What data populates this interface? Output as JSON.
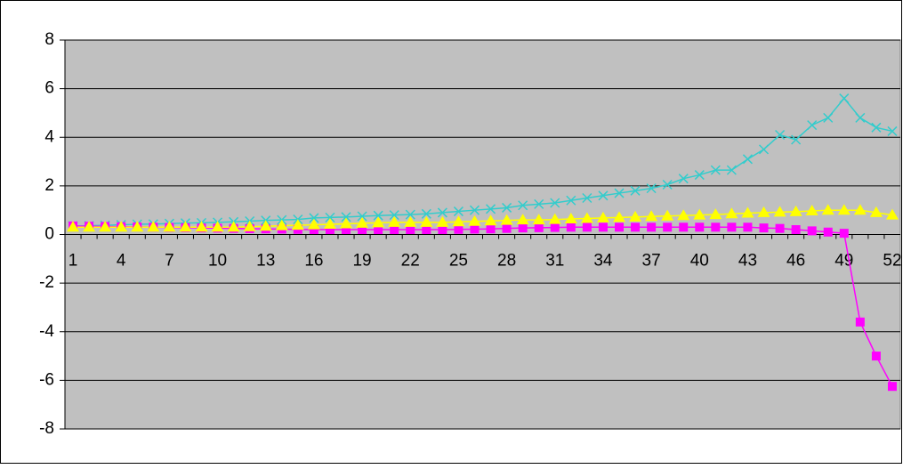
{
  "chart_data": {
    "type": "line",
    "categories": [
      1,
      null,
      null,
      4,
      null,
      null,
      7,
      null,
      null,
      10,
      null,
      null,
      13,
      null,
      null,
      16,
      null,
      null,
      19,
      null,
      null,
      22,
      null,
      null,
      25,
      null,
      null,
      28,
      null,
      null,
      31,
      null,
      null,
      34,
      null,
      null,
      37,
      null,
      null,
      40,
      null,
      null,
      43,
      null,
      null,
      46,
      null,
      null,
      49,
      null,
      null,
      52
    ],
    "series": [
      {
        "color": "#33cccc",
        "marker": "x",
        "values": [
          0.35,
          0.36,
          0.38,
          0.4,
          0.42,
          0.43,
          0.45,
          0.47,
          0.48,
          0.5,
          0.52,
          0.55,
          0.58,
          0.6,
          0.62,
          0.68,
          0.7,
          0.72,
          0.75,
          0.78,
          0.8,
          0.82,
          0.85,
          0.9,
          0.95,
          1.0,
          1.05,
          1.1,
          1.2,
          1.25,
          1.3,
          1.4,
          1.5,
          1.6,
          1.7,
          1.8,
          1.9,
          2.05,
          2.3,
          2.45,
          2.65,
          2.65,
          3.1,
          3.5,
          4.1,
          3.9,
          4.5,
          4.8,
          5.6,
          4.8,
          4.4,
          4.25
        ]
      },
      {
        "color": "#ff00ff",
        "marker": "square",
        "values": [
          0.35,
          0.34,
          0.33,
          0.32,
          0.31,
          0.3,
          0.29,
          0.28,
          0.27,
          0.26,
          0.25,
          0.24,
          0.23,
          0.22,
          0.21,
          0.2,
          0.2,
          0.2,
          0.2,
          0.2,
          0.2,
          0.2,
          0.2,
          0.2,
          0.21,
          0.22,
          0.23,
          0.25,
          0.27,
          0.28,
          0.29,
          0.3,
          0.3,
          0.3,
          0.3,
          0.3,
          0.3,
          0.3,
          0.3,
          0.3,
          0.3,
          0.3,
          0.3,
          0.27,
          0.25,
          0.2,
          0.15,
          0.1,
          0.05,
          -3.6,
          -5.0,
          -6.25
        ]
      },
      {
        "color": "#ffff00",
        "marker": "triangle",
        "values": [
          0.3,
          0.3,
          0.3,
          0.3,
          0.3,
          0.3,
          0.3,
          0.3,
          0.3,
          0.3,
          0.3,
          0.32,
          0.34,
          0.36,
          0.38,
          0.4,
          0.42,
          0.44,
          0.46,
          0.48,
          0.5,
          0.5,
          0.5,
          0.5,
          0.52,
          0.54,
          0.56,
          0.58,
          0.6,
          0.6,
          0.62,
          0.64,
          0.66,
          0.68,
          0.7,
          0.72,
          0.74,
          0.76,
          0.78,
          0.8,
          0.82,
          0.85,
          0.88,
          0.9,
          0.92,
          0.94,
          0.97,
          1.0,
          1.0,
          1.0,
          0.9,
          0.8
        ]
      }
    ],
    "ylim": [
      -8,
      8
    ],
    "yticks": [
      -8,
      -6,
      -4,
      -2,
      0,
      2,
      4,
      6,
      8
    ],
    "grid": true,
    "plot_background": "#c0c0c0"
  }
}
